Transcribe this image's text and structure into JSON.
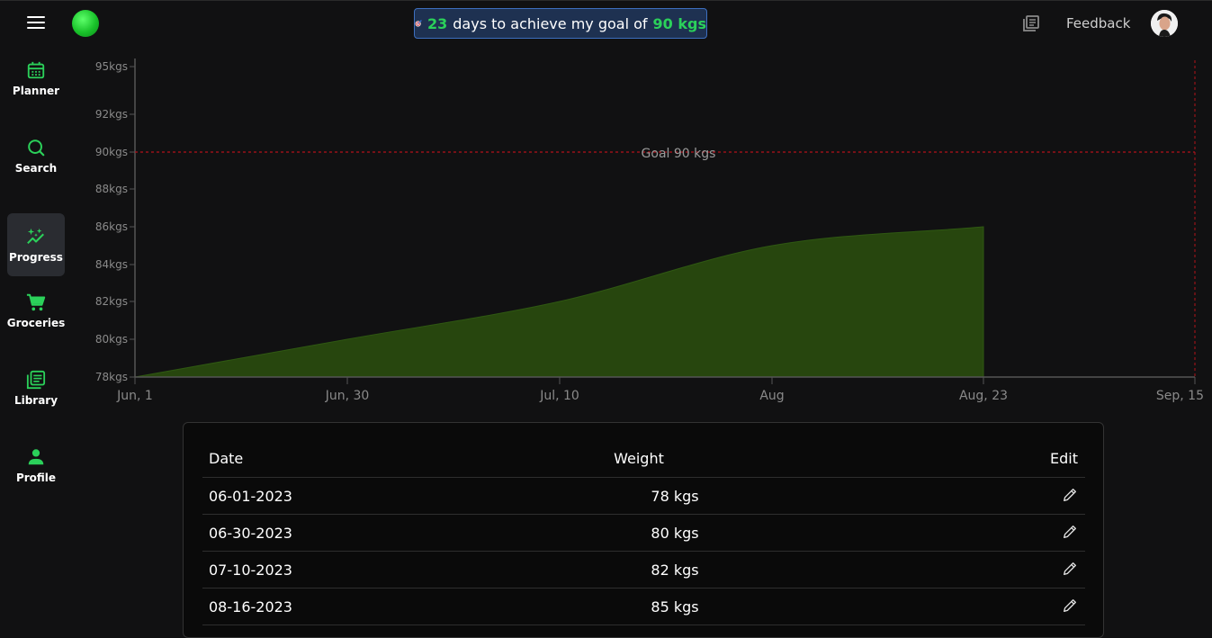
{
  "header": {
    "goal_banner": {
      "days": "23",
      "text_mid": "days to achieve my goal of",
      "goal": "90 kgs"
    },
    "feedback_label": "Feedback"
  },
  "sidebar": {
    "items": [
      {
        "label": "Planner",
        "icon": "calendar-icon",
        "active": false
      },
      {
        "label": "Search",
        "icon": "search-icon",
        "active": false
      },
      {
        "label": "Progress",
        "icon": "sparkle-trend-icon",
        "active": true
      },
      {
        "label": "Groceries",
        "icon": "cart-icon",
        "active": false
      },
      {
        "label": "Library",
        "icon": "library-icon",
        "active": false
      },
      {
        "label": "Profile",
        "icon": "person-icon",
        "active": false
      }
    ]
  },
  "colors": {
    "accent": "#2bd15a",
    "area_fill": "#27460e",
    "area_stroke": "#2f5812",
    "goal_line": "#b3121b",
    "banner_bg": "#1e3151",
    "banner_border": "#3d6fbf"
  },
  "chart_data": {
    "type": "area",
    "x": [
      "2023-06-01",
      "2023-06-30",
      "2023-07-10",
      "2023-08-16",
      "2023-08-23"
    ],
    "x_tick_labels": [
      "Jun, 1",
      "Jun, 30",
      "Jul, 10",
      "Aug",
      "Aug, 23",
      "Sep, 15"
    ],
    "y": [
      78,
      80,
      82,
      85,
      86
    ],
    "y_tick_labels": [
      "78kgs",
      "80kgs",
      "82kgs",
      "84kgs",
      "86kgs",
      "88kgs",
      "90kgs",
      "92kgs",
      "95kgs"
    ],
    "y_ticks": [
      78,
      80,
      82,
      84,
      86,
      88,
      90,
      92,
      95
    ],
    "ylim": [
      78,
      95
    ],
    "goal_value": 90,
    "goal_label": "Goal 90 kgs"
  },
  "table": {
    "headers": {
      "date": "Date",
      "weight": "Weight",
      "edit": "Edit"
    },
    "rows": [
      {
        "date": "06-01-2023",
        "weight": "78 kgs"
      },
      {
        "date": "06-30-2023",
        "weight": "80 kgs"
      },
      {
        "date": "07-10-2023",
        "weight": "82 kgs"
      },
      {
        "date": "08-16-2023",
        "weight": "85 kgs"
      }
    ]
  }
}
